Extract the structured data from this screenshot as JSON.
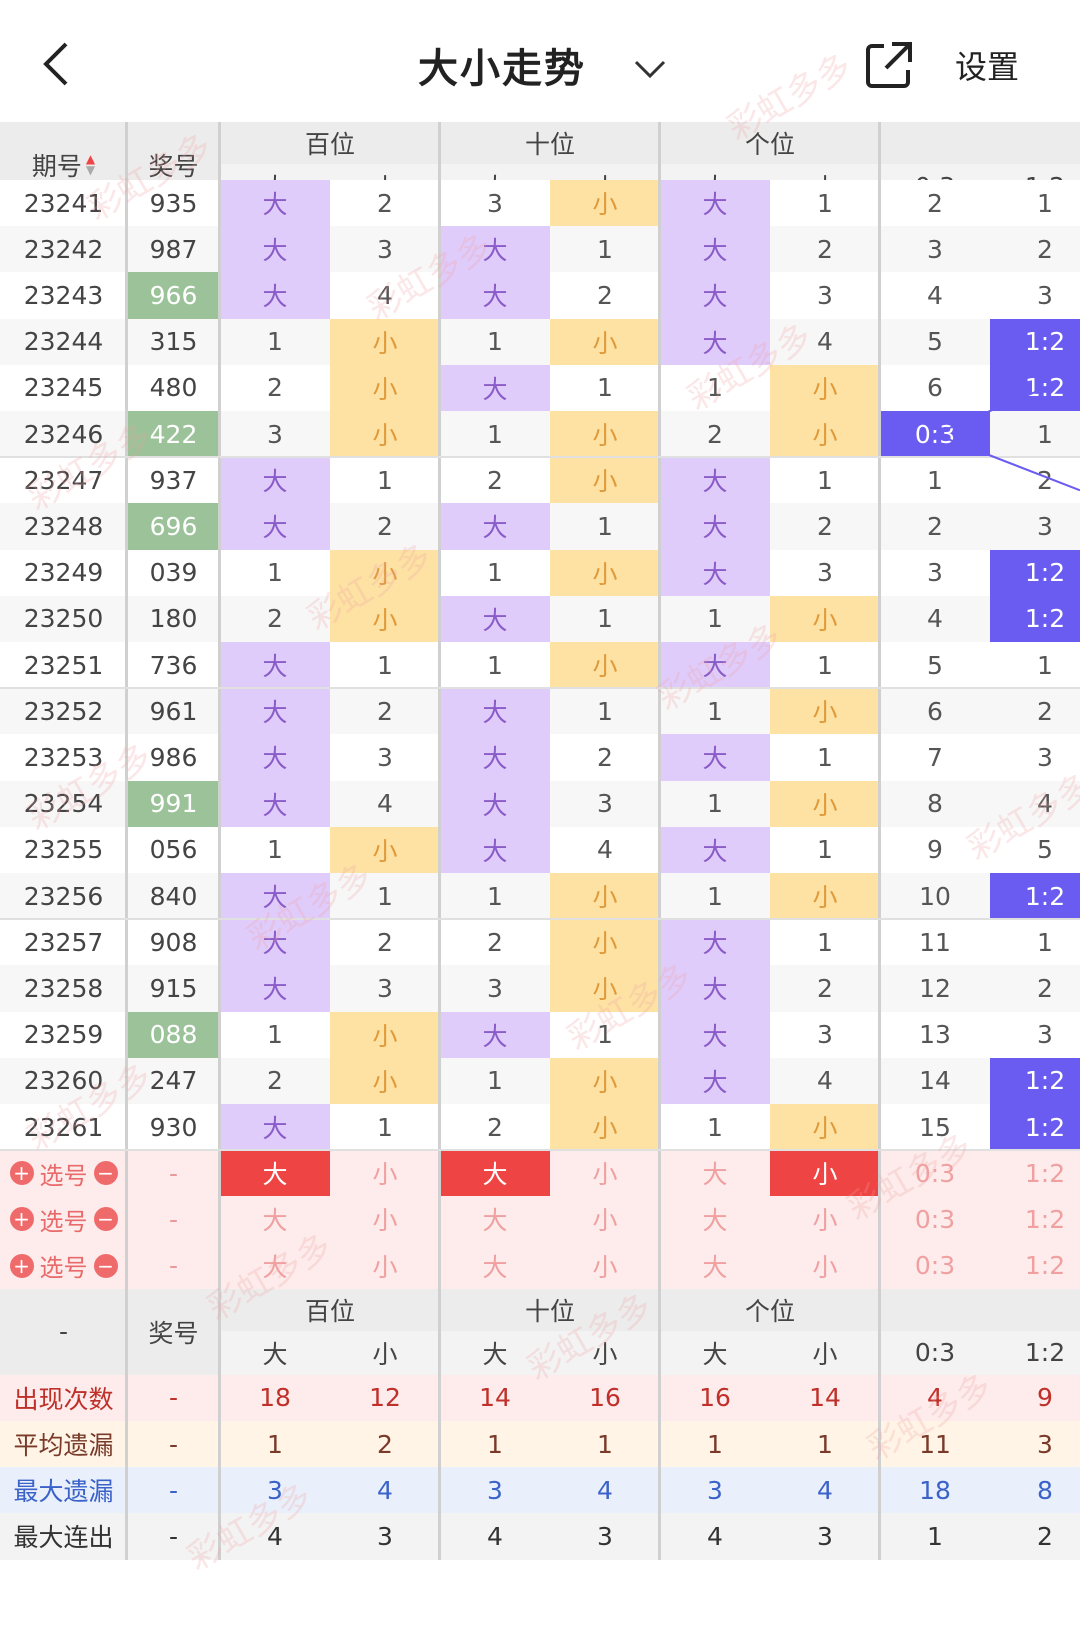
{
  "header": {
    "title": "大小走势",
    "settings_label": "设置"
  },
  "columns": {
    "issue": "期号",
    "number": "奖号",
    "groups": [
      "百位",
      "十位",
      "个位"
    ],
    "big": "大",
    "small": "小",
    "ratios": [
      "0:3",
      "1:2"
    ]
  },
  "colors": {
    "big_bg": "#e0ccfb",
    "small_bg": "#fde2a4",
    "small_text": "#e09a3a",
    "big_text": "#8a5cc8",
    "ratio_bg": "#6a5cf0",
    "highlight_number_bg": "#9cc29a",
    "pick_row_bg": "#fdeceb",
    "pick_selected_bg": "#ef4444"
  },
  "rows": [
    {
      "issue": "23241",
      "num": "935",
      "hl": false,
      "c": [
        "大",
        "2",
        "3",
        "小",
        "大",
        "1",
        "2",
        "1"
      ]
    },
    {
      "issue": "23242",
      "num": "987",
      "hl": false,
      "c": [
        "大",
        "3",
        "大",
        "1",
        "大",
        "2",
        "3",
        "2"
      ]
    },
    {
      "issue": "23243",
      "num": "966",
      "hl": true,
      "c": [
        "大",
        "4",
        "大",
        "2",
        "大",
        "3",
        "4",
        "3"
      ]
    },
    {
      "issue": "23244",
      "num": "315",
      "hl": false,
      "c": [
        "1",
        "小",
        "1",
        "小",
        "大",
        "4",
        "5",
        "1:2"
      ]
    },
    {
      "issue": "23245",
      "num": "480",
      "hl": false,
      "c": [
        "2",
        "小",
        "大",
        "1",
        "1",
        "小",
        "6",
        "1:2"
      ]
    },
    {
      "issue": "23246",
      "num": "422",
      "hl": true,
      "c": [
        "3",
        "小",
        "1",
        "小",
        "2",
        "小",
        "0:3",
        "1"
      ]
    },
    {
      "issue": "23247",
      "num": "937",
      "hl": false,
      "c": [
        "大",
        "1",
        "2",
        "小",
        "大",
        "1",
        "1",
        "2"
      ]
    },
    {
      "issue": "23248",
      "num": "696",
      "hl": true,
      "c": [
        "大",
        "2",
        "大",
        "1",
        "大",
        "2",
        "2",
        "3"
      ]
    },
    {
      "issue": "23249",
      "num": "039",
      "hl": false,
      "c": [
        "1",
        "小",
        "1",
        "小",
        "大",
        "3",
        "3",
        "1:2"
      ]
    },
    {
      "issue": "23250",
      "num": "180",
      "hl": false,
      "c": [
        "2",
        "小",
        "大",
        "1",
        "1",
        "小",
        "4",
        "1:2"
      ]
    },
    {
      "issue": "23251",
      "num": "736",
      "hl": false,
      "c": [
        "大",
        "1",
        "1",
        "小",
        "大",
        "1",
        "5",
        "1"
      ]
    },
    {
      "issue": "23252",
      "num": "961",
      "hl": false,
      "c": [
        "大",
        "2",
        "大",
        "1",
        "1",
        "小",
        "6",
        "2"
      ]
    },
    {
      "issue": "23253",
      "num": "986",
      "hl": false,
      "c": [
        "大",
        "3",
        "大",
        "2",
        "大",
        "1",
        "7",
        "3"
      ]
    },
    {
      "issue": "23254",
      "num": "991",
      "hl": true,
      "c": [
        "大",
        "4",
        "大",
        "3",
        "1",
        "小",
        "8",
        "4"
      ]
    },
    {
      "issue": "23255",
      "num": "056",
      "hl": false,
      "c": [
        "1",
        "小",
        "大",
        "4",
        "大",
        "1",
        "9",
        "5"
      ]
    },
    {
      "issue": "23256",
      "num": "840",
      "hl": false,
      "c": [
        "大",
        "1",
        "1",
        "小",
        "1",
        "小",
        "10",
        "1:2"
      ]
    },
    {
      "issue": "23257",
      "num": "908",
      "hl": false,
      "c": [
        "大",
        "2",
        "2",
        "小",
        "大",
        "1",
        "11",
        "1"
      ]
    },
    {
      "issue": "23258",
      "num": "915",
      "hl": false,
      "c": [
        "大",
        "3",
        "3",
        "小",
        "大",
        "2",
        "12",
        "2"
      ]
    },
    {
      "issue": "23259",
      "num": "088",
      "hl": true,
      "c": [
        "1",
        "小",
        "大",
        "1",
        "大",
        "3",
        "13",
        "3"
      ]
    },
    {
      "issue": "23260",
      "num": "247",
      "hl": false,
      "c": [
        "2",
        "小",
        "1",
        "小",
        "大",
        "4",
        "14",
        "1:2"
      ]
    },
    {
      "issue": "23261",
      "num": "930",
      "hl": false,
      "c": [
        "大",
        "1",
        "2",
        "小",
        "1",
        "小",
        "15",
        "1:2"
      ]
    }
  ],
  "pick": {
    "label": "选号",
    "dash": "-",
    "rows": [
      {
        "sel": [
          true,
          false,
          true,
          false,
          false,
          true
        ]
      },
      {
        "sel": [
          false,
          false,
          false,
          false,
          false,
          false
        ]
      },
      {
        "sel": [
          false,
          false,
          false,
          false,
          false,
          false
        ]
      }
    ]
  },
  "footer_header": {
    "dash": "-",
    "number": "奖号"
  },
  "stats": [
    {
      "label": "出现次数",
      "color": "#c0302a",
      "bg": "#fdeceb",
      "vals": [
        "-",
        "18",
        "12",
        "14",
        "16",
        "16",
        "14",
        "4",
        "9"
      ]
    },
    {
      "label": "平均遗漏",
      "color": "#7a3a2a",
      "bg": "#fff4e6",
      "vals": [
        "-",
        "1",
        "2",
        "1",
        "1",
        "1",
        "1",
        "11",
        "3"
      ]
    },
    {
      "label": "最大遗漏",
      "color": "#3a62c8",
      "bg": "#eaf0fb",
      "vals": [
        "-",
        "3",
        "4",
        "3",
        "4",
        "3",
        "4",
        "18",
        "8"
      ]
    },
    {
      "label": "最大连出",
      "color": "#333333",
      "bg": "#f3f3f3",
      "vals": [
        "-",
        "4",
        "3",
        "4",
        "3",
        "4",
        "3",
        "1",
        "2"
      ]
    }
  ]
}
